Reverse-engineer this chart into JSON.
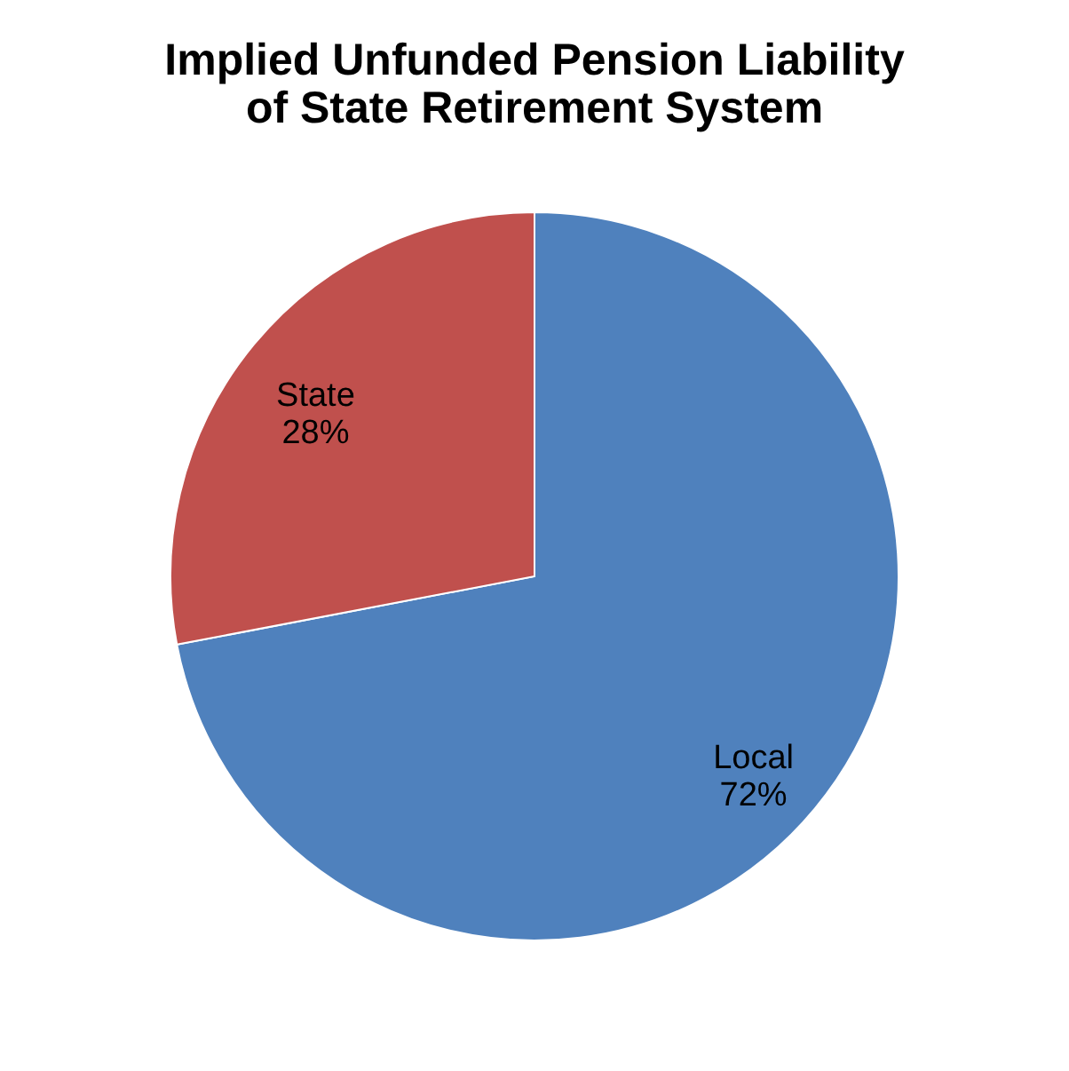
{
  "chart_data": {
    "type": "pie",
    "title": [
      "Implied Unfunded Pension Liability",
      "of State Retirement System"
    ],
    "categories": [
      "Local",
      "State"
    ],
    "values": [
      72,
      28
    ],
    "colors": [
      "#4f81bd",
      "#c0504d"
    ],
    "value_labels": [
      "72%",
      "28%"
    ],
    "legend": false
  }
}
